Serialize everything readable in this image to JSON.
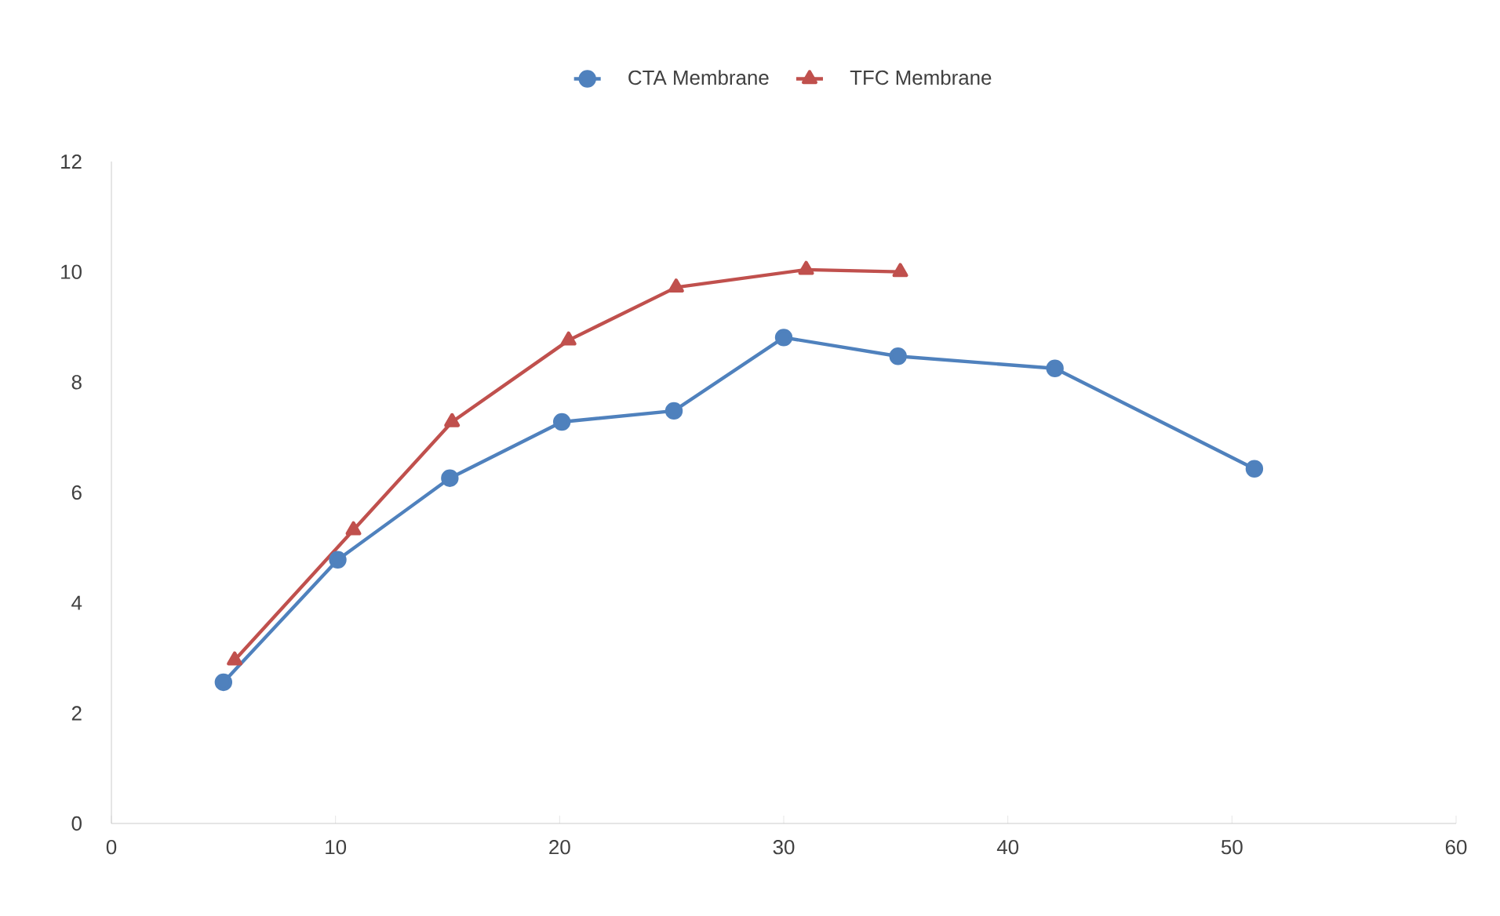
{
  "chart_data": {
    "type": "line",
    "xlim": [
      0,
      60
    ],
    "ylim": [
      0,
      12
    ],
    "xticks": [
      0,
      10,
      20,
      30,
      40,
      50,
      60
    ],
    "yticks": [
      0,
      2,
      4,
      6,
      8,
      10,
      12
    ],
    "grid": false,
    "legend": "top",
    "line_style": "solid",
    "series": [
      {
        "name": "CTA Membrane",
        "color": "#4f81bd",
        "marker": "circle",
        "x": [
          5,
          10.1,
          15.1,
          20.1,
          25.1,
          30,
          35.1,
          42.1,
          51
        ],
        "values": [
          2.56,
          4.78,
          6.26,
          7.28,
          7.48,
          8.81,
          8.47,
          8.25,
          6.43
        ]
      },
      {
        "name": "TFC Membrane",
        "color": "#c0504d",
        "marker": "triangle",
        "x": [
          5.5,
          10.8,
          15.2,
          20.4,
          25.2,
          31,
          35.2
        ],
        "values": [
          2.96,
          5.32,
          7.28,
          8.76,
          9.72,
          10.04,
          10.0
        ]
      }
    ]
  }
}
